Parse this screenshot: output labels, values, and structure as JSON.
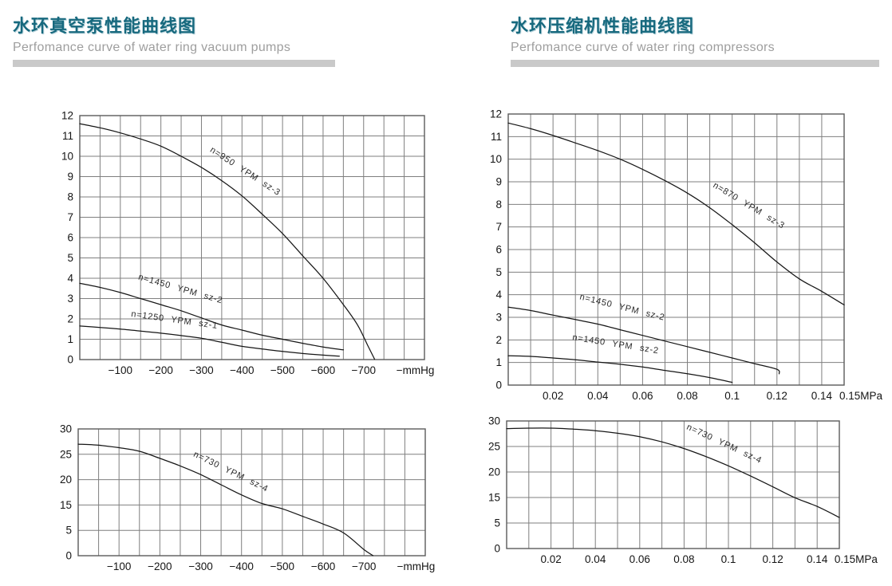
{
  "header_left": {
    "title": "水环真空泵性能曲线图",
    "subtitle": "Perfomance curve of water ring vacuum pumps"
  },
  "header_right": {
    "title": "水环压缩机性能曲线图",
    "subtitle": "Perfomance curve of water ring  compressors"
  },
  "colors": {
    "title_teal": "#17697e",
    "subtitle_gray": "#9e9e9e",
    "bar_gray": "#c9c9c9",
    "grid_gray": "#7f7f7f",
    "plot_border": "#5a5a5a",
    "curve_black": "#161616"
  },
  "chart_data": [
    {
      "id": "vacuum-top",
      "type": "line",
      "title": "",
      "xlabel_unit": "−mmHg",
      "x_axis": {
        "min": 0,
        "max": -850,
        "grid_step": -50,
        "ticks": [
          {
            "col": 2,
            "label": "−100"
          },
          {
            "col": 4,
            "label": "−200"
          },
          {
            "col": 6,
            "label": "−300"
          },
          {
            "col": 8,
            "label": "−400"
          },
          {
            "col": 10,
            "label": "−500"
          },
          {
            "col": 12,
            "label": "−600"
          },
          {
            "col": 14,
            "label": "−700"
          },
          {
            "col": 16.55,
            "label": "−mmHg"
          }
        ]
      },
      "y_axis": {
        "tick_values_bottom_to_top": [
          0,
          1,
          2,
          3,
          4,
          5,
          6,
          7,
          8,
          9,
          10,
          11,
          12
        ],
        "tick_labels_top_to_bottom": [
          "12",
          "11",
          "10",
          "9",
          "8",
          "7",
          "6",
          "5",
          "4",
          "3",
          "2",
          "1",
          "0"
        ]
      },
      "series": [
        {
          "name": "n=950 YPM sz-3",
          "label_pos": [
            -320,
            10.25
          ],
          "label_rotation": 33,
          "points": [
            [
              0,
              11.6
            ],
            [
              -50,
              11.4
            ],
            [
              -100,
              11.15
            ],
            [
              -150,
              10.85
            ],
            [
              -200,
              10.5
            ],
            [
              -250,
              10.0
            ],
            [
              -300,
              9.45
            ],
            [
              -350,
              8.8
            ],
            [
              -400,
              8.05
            ],
            [
              -450,
              7.15
            ],
            [
              -500,
              6.2
            ],
            [
              -550,
              5.1
            ],
            [
              -600,
              4.0
            ],
            [
              -650,
              2.7
            ],
            [
              -685,
              1.7
            ],
            [
              -710,
              0.7
            ],
            [
              -727,
              0.02
            ]
          ]
        },
        {
          "name": "n=1450 YPM sz-2",
          "label_pos": [
            -143,
            3.95
          ],
          "label_rotation": 16,
          "points": [
            [
              0,
              3.75
            ],
            [
              -50,
              3.55
            ],
            [
              -100,
              3.3
            ],
            [
              -150,
              3.0
            ],
            [
              -200,
              2.7
            ],
            [
              -250,
              2.4
            ],
            [
              -300,
              2.05
            ],
            [
              -350,
              1.7
            ],
            [
              -400,
              1.45
            ],
            [
              -450,
              1.2
            ],
            [
              -500,
              1.0
            ],
            [
              -550,
              0.8
            ],
            [
              -600,
              0.62
            ],
            [
              -650,
              0.48
            ]
          ]
        },
        {
          "name": "n=1250 YPM sz-1",
          "label_pos": [
            -126,
            2.12
          ],
          "label_rotation": 8,
          "points": [
            [
              0,
              1.65
            ],
            [
              -50,
              1.58
            ],
            [
              -100,
              1.5
            ],
            [
              -150,
              1.4
            ],
            [
              -200,
              1.3
            ],
            [
              -250,
              1.18
            ],
            [
              -300,
              1.05
            ],
            [
              -350,
              0.85
            ],
            [
              -400,
              0.65
            ],
            [
              -450,
              0.52
            ],
            [
              -500,
              0.4
            ],
            [
              -550,
              0.3
            ],
            [
              -600,
              0.22
            ],
            [
              -640,
              0.17
            ]
          ]
        }
      ]
    },
    {
      "id": "compressor-top",
      "type": "line",
      "title": "",
      "xlabel_unit": "0.15MPa",
      "x_axis": {
        "min": 0,
        "max": 0.15,
        "grid_step": 0.01,
        "ticks": [
          {
            "col": 2,
            "label": "0.02"
          },
          {
            "col": 4,
            "label": "0.04"
          },
          {
            "col": 6,
            "label": "0.06"
          },
          {
            "col": 8,
            "label": "0.08"
          },
          {
            "col": 10,
            "label": "0.1"
          },
          {
            "col": 12,
            "label": "0.12"
          },
          {
            "col": 14,
            "label": "0.14"
          },
          {
            "col": 15.75,
            "label": "0.15MPa"
          }
        ]
      },
      "y_axis": {
        "tick_values_bottom_to_top": [
          0,
          1,
          2,
          3,
          4,
          5,
          6,
          7,
          8,
          9,
          10,
          11,
          12
        ],
        "tick_labels_top_to_bottom": [
          "12",
          "11",
          "10",
          "9",
          "8",
          "7",
          "6",
          "5",
          "4",
          "3",
          "2",
          "1",
          "0"
        ]
      },
      "series": [
        {
          "name": "n=870 YPM sz-3",
          "label_pos": [
            0.0912,
            8.78
          ],
          "label_rotation": 31,
          "points": [
            [
              0,
              11.6
            ],
            [
              0.01,
              11.35
            ],
            [
              0.02,
              11.05
            ],
            [
              0.03,
              10.72
            ],
            [
              0.04,
              10.38
            ],
            [
              0.05,
              10.0
            ],
            [
              0.06,
              9.55
            ],
            [
              0.07,
              9.05
            ],
            [
              0.08,
              8.5
            ],
            [
              0.09,
              7.85
            ],
            [
              0.1,
              7.1
            ],
            [
              0.11,
              6.3
            ],
            [
              0.12,
              5.45
            ],
            [
              0.13,
              4.7
            ],
            [
              0.14,
              4.15
            ],
            [
              0.15,
              3.55
            ]
          ]
        },
        {
          "name": "n=1450 YPM sz-2",
          "label_pos": [
            0.0317,
            3.8
          ],
          "label_rotation": 14,
          "points": [
            [
              0,
              3.45
            ],
            [
              0.01,
              3.3
            ],
            [
              0.02,
              3.1
            ],
            [
              0.03,
              2.9
            ],
            [
              0.04,
              2.7
            ],
            [
              0.05,
              2.45
            ],
            [
              0.06,
              2.2
            ],
            [
              0.07,
              1.95
            ],
            [
              0.08,
              1.7
            ],
            [
              0.09,
              1.45
            ],
            [
              0.1,
              1.2
            ],
            [
              0.11,
              0.95
            ],
            [
              0.12,
              0.7
            ],
            [
              0.121,
              0.5
            ]
          ]
        },
        {
          "name": "n=1450 YPM sz-2",
          "label_pos": [
            0.0285,
            2.0
          ],
          "label_rotation": 9,
          "points": [
            [
              0,
              1.3
            ],
            [
              0.01,
              1.27
            ],
            [
              0.02,
              1.2
            ],
            [
              0.03,
              1.12
            ],
            [
              0.04,
              1.02
            ],
            [
              0.05,
              0.92
            ],
            [
              0.06,
              0.8
            ],
            [
              0.07,
              0.65
            ],
            [
              0.08,
              0.5
            ],
            [
              0.09,
              0.33
            ],
            [
              0.1,
              0.12
            ]
          ]
        }
      ]
    },
    {
      "id": "vacuum-bottom",
      "type": "line",
      "title": "",
      "xlabel_unit": "−mmHg",
      "x_axis": {
        "min": 0,
        "max": -850,
        "grid_step": -50,
        "ticks": [
          {
            "col": 2,
            "label": "−100"
          },
          {
            "col": 4,
            "label": "−200"
          },
          {
            "col": 6,
            "label": "−300"
          },
          {
            "col": 8,
            "label": "−400"
          },
          {
            "col": 10,
            "label": "−500"
          },
          {
            "col": 12,
            "label": "−600"
          },
          {
            "col": 14,
            "label": "−700"
          },
          {
            "col": 16.55,
            "label": "−mmHg"
          }
        ]
      },
      "y_axis": {
        "tick_values_bottom_to_top": [
          0,
          5,
          15,
          20,
          25,
          30
        ],
        "tick_labels_top_to_bottom": [
          "30",
          "25",
          "20",
          "15",
          "5",
          "0"
        ]
      },
      "series": [
        {
          "name": "n=730 YPM sz-4",
          "label_pos": [
            -281,
            24.65
          ],
          "label_rotation": 26,
          "points": [
            [
              0,
              27
            ],
            [
              -50,
              26.8
            ],
            [
              -100,
              26.3
            ],
            [
              -150,
              25.6
            ],
            [
              -200,
              24.2
            ],
            [
              -250,
              22.7
            ],
            [
              -300,
              21.0
            ],
            [
              -350,
              19.0
            ],
            [
              -400,
              17.0
            ],
            [
              -450,
              15.3
            ],
            [
              -500,
              13.5
            ],
            [
              -550,
              10.5
            ],
            [
              -600,
              7.5
            ],
            [
              -650,
              4.5
            ],
            [
              -700,
              1.2
            ],
            [
              -722,
              0.02
            ]
          ]
        }
      ]
    },
    {
      "id": "compressor-bottom",
      "type": "line",
      "title": "",
      "xlabel_unit": "0.15MPa",
      "x_axis": {
        "min": 0,
        "max": 0.15,
        "grid_step": 0.01,
        "ticks": [
          {
            "col": 2,
            "label": "0.02"
          },
          {
            "col": 4,
            "label": "0.04"
          },
          {
            "col": 6,
            "label": "0.06"
          },
          {
            "col": 8,
            "label": "0.08"
          },
          {
            "col": 10,
            "label": "0.1"
          },
          {
            "col": 12,
            "label": "0.12"
          },
          {
            "col": 14,
            "label": "0.14"
          },
          {
            "col": 15.75,
            "label": "0.15MPa"
          }
        ]
      },
      "y_axis": {
        "tick_values_bottom_to_top": [
          0,
          5,
          15,
          20,
          25,
          30
        ],
        "tick_labels_top_to_bottom": [
          "30",
          "25",
          "20",
          "15",
          "5",
          "0"
        ]
      },
      "series": [
        {
          "name": "n=730 YPM sz-4",
          "label_pos": [
            0.0809,
            28.45
          ],
          "label_rotation": 25,
          "points": [
            [
              0,
              28.5
            ],
            [
              0.01,
              28.6
            ],
            [
              0.02,
              28.6
            ],
            [
              0.03,
              28.4
            ],
            [
              0.04,
              28.1
            ],
            [
              0.05,
              27.6
            ],
            [
              0.06,
              26.9
            ],
            [
              0.07,
              25.9
            ],
            [
              0.08,
              24.6
            ],
            [
              0.09,
              23.0
            ],
            [
              0.1,
              21.2
            ],
            [
              0.11,
              19.2
            ],
            [
              0.12,
              17.1
            ],
            [
              0.13,
              14.9
            ],
            [
              0.14,
              11.5
            ],
            [
              0.15,
              7.2
            ]
          ]
        }
      ]
    }
  ]
}
